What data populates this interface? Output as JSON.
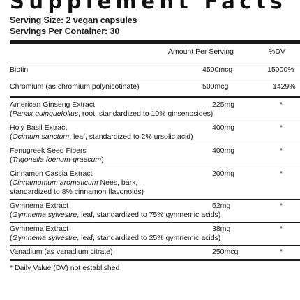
{
  "title": "Supplement Facts",
  "serving_size": "Serving Size: 2 vegan capsules",
  "servings_per_container": "Servings Per Container: 30",
  "header": {
    "amount": "Amount Per Serving",
    "dv": "%DV"
  },
  "vitamins": [
    {
      "name": "Biotin",
      "amount": "4500mcg",
      "dv": "15000%"
    },
    {
      "name": "Chromium (as chromium polynicotinate)",
      "amount": "500mcg",
      "dv": "1429%"
    }
  ],
  "botanicals": [
    {
      "name": "American Ginseng Extract",
      "latin": "Panax quinquefolius",
      "detail": ", root, standardized to 10% ginsenosides)",
      "amount": "225mg",
      "dv": "*"
    },
    {
      "name": "Holy Basil Extract",
      "latin": "Ocimum sanctum",
      "detail": ", leaf, standardized to 2% ursolic acid)",
      "amount": "400mg",
      "dv": "*"
    },
    {
      "name": "Fenugreek Seed Fibers",
      "latin": "Trigonella foenum-graecum",
      "detail": ")",
      "amount": "400mg",
      "dv": "*"
    },
    {
      "name": "Cinnamon Cassia Extract",
      "latin": "Cinnamomum aromaticum",
      "detail": " Nees, bark,",
      "detail2": "standardized to 8% cinnamon flavonoids)",
      "amount": "200mg",
      "dv": "*"
    },
    {
      "name": "Gymnema Extract",
      "latin": "Gymnema sylvestre",
      "detail": ", leaf, standardized to 75% gymnemic acids)",
      "amount": "62mg",
      "dv": "*"
    },
    {
      "name": "Gymnema Extract",
      "latin": "Gymnema sylvestre",
      "detail": ", leaf, standardized to 25% gymnemic acids)",
      "amount": "38mg",
      "dv": "*"
    }
  ],
  "vanadium": {
    "name": "Vanadium (as vanadium citrate)",
    "amount": "250mcg",
    "dv": "*"
  },
  "footnote": "* Daily Value (DV) not established"
}
